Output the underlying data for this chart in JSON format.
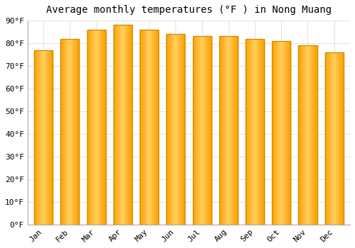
{
  "title": "Average monthly temperatures (°F ) in Nong Muang",
  "months": [
    "Jan",
    "Feb",
    "Mar",
    "Apr",
    "May",
    "Jun",
    "Jul",
    "Aug",
    "Sep",
    "Oct",
    "Nov",
    "Dec"
  ],
  "values": [
    77,
    82,
    86,
    88,
    86,
    84,
    83,
    83,
    82,
    81,
    79,
    76
  ],
  "bar_color_center": "#FFD060",
  "bar_color_edge": "#F5A000",
  "bar_border_color": "#CC8800",
  "ylim": [
    0,
    90
  ],
  "yticks": [
    0,
    10,
    20,
    30,
    40,
    50,
    60,
    70,
    80,
    90
  ],
  "ytick_labels": [
    "0°F",
    "10°F",
    "20°F",
    "30°F",
    "40°F",
    "50°F",
    "60°F",
    "70°F",
    "80°F",
    "90°F"
  ],
  "background_color": "#FFFFFF",
  "grid_color": "#DDDDDD",
  "title_fontsize": 10,
  "tick_fontsize": 8,
  "bar_width": 0.7
}
